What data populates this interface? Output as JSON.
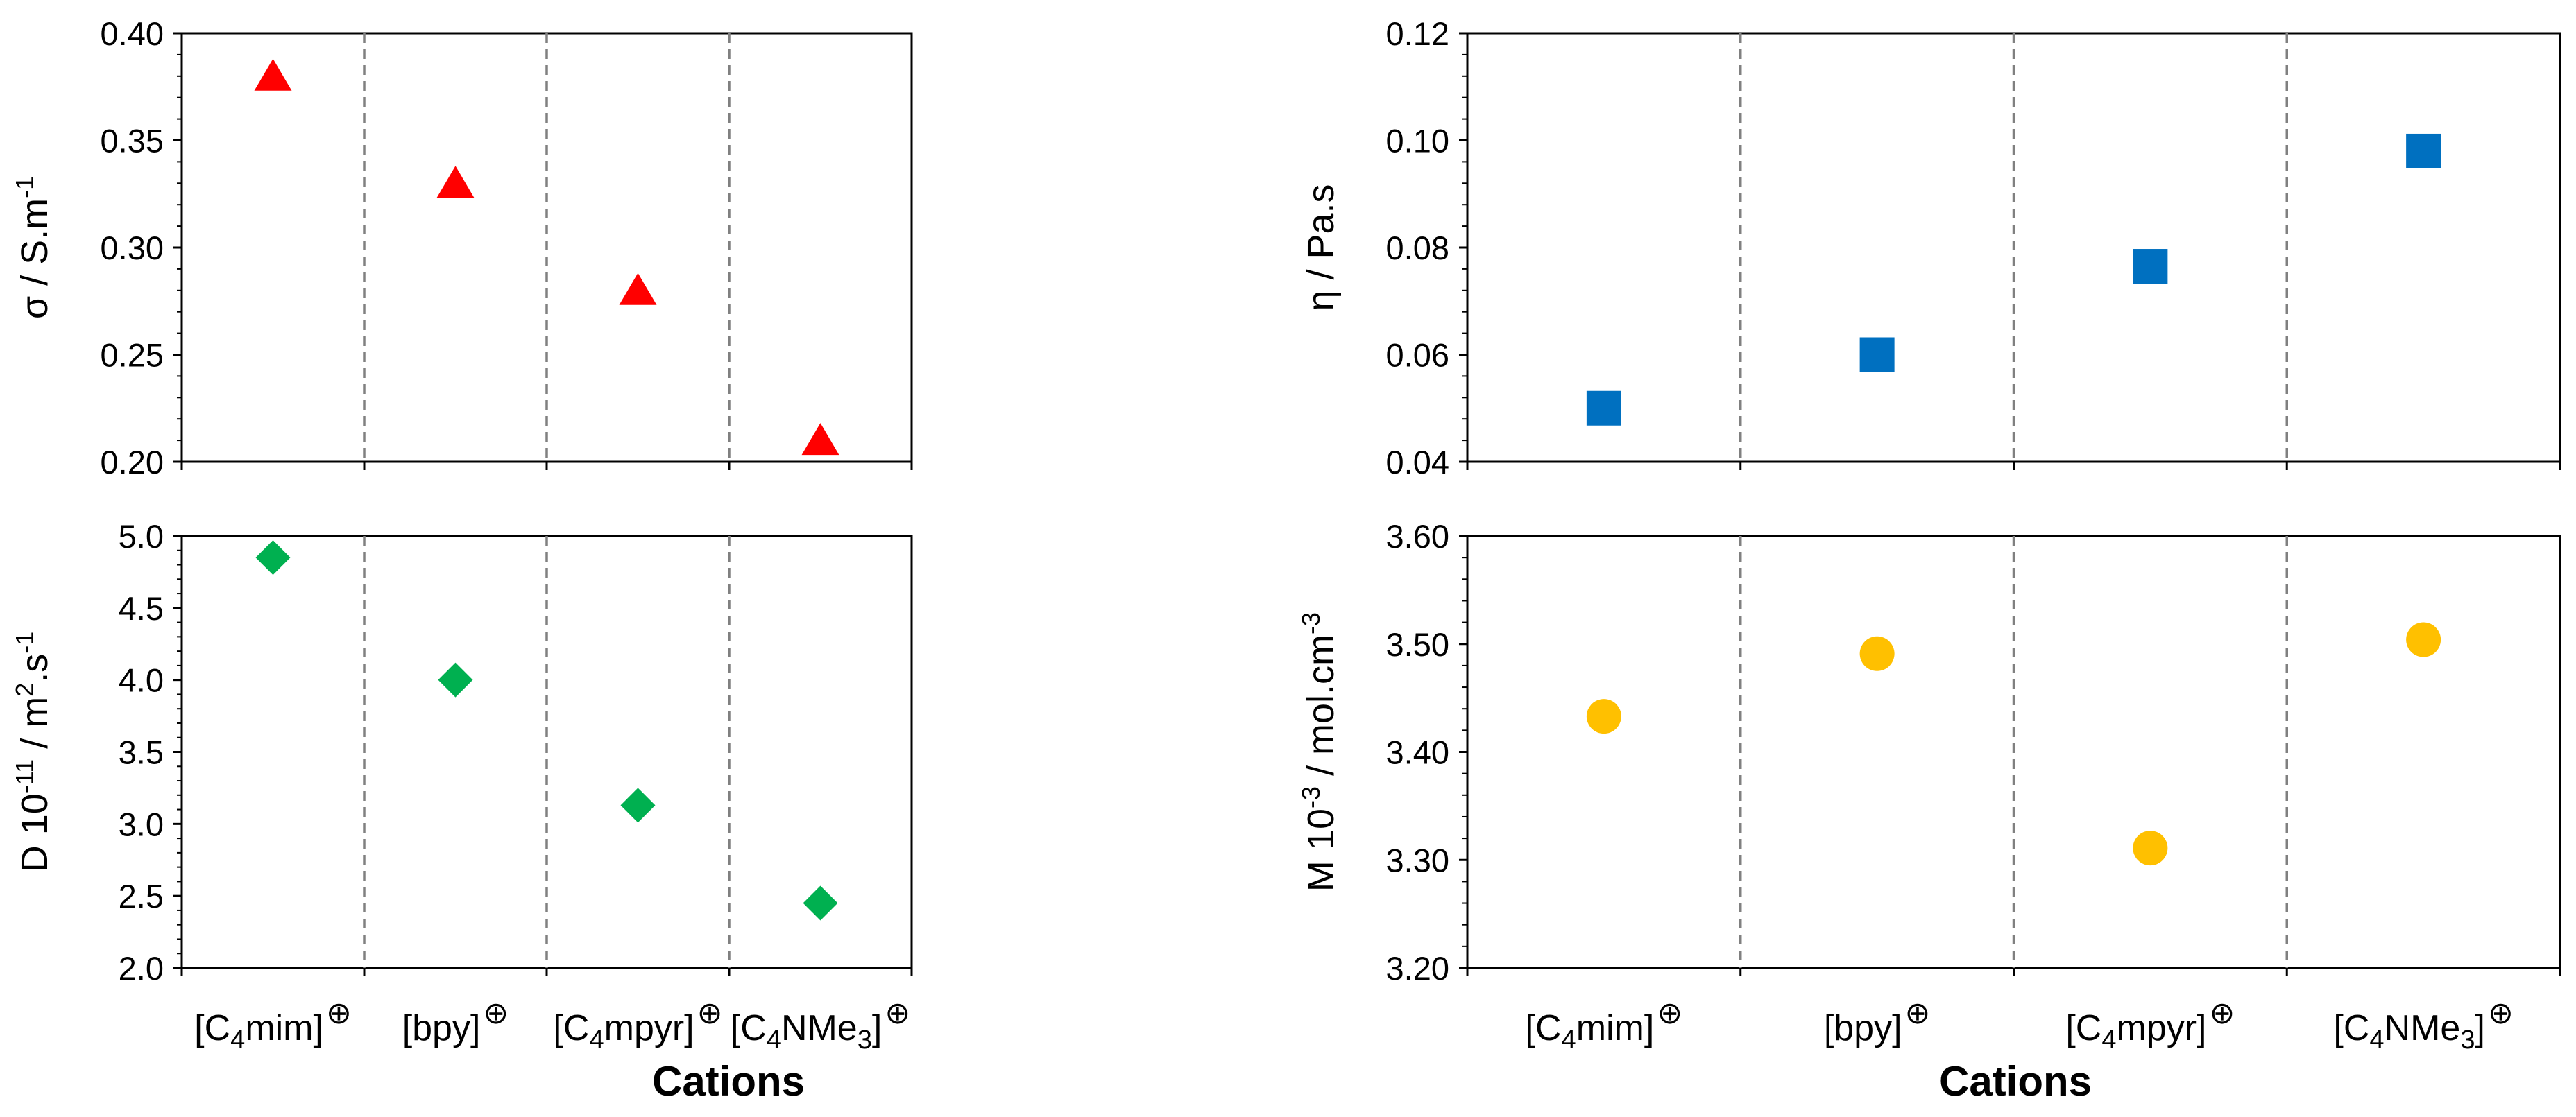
{
  "chart_data": {
    "type": "scatter",
    "categories": [
      "[C4mim]",
      "[bpy]",
      "[C4mpyr]",
      "[C4NMe3]"
    ],
    "category_labels": [
      {
        "pre": "[C",
        "sub": "4",
        "post": "mim]"
      },
      {
        "pre": "[bpy]",
        "sub": "",
        "post": ""
      },
      {
        "pre": "[C",
        "sub": "4",
        "post": "mpyr]"
      },
      {
        "pre": "[C",
        "sub": "4",
        "post": "NMe",
        "sub2": "3",
        "post2": "]"
      }
    ],
    "cation_charge_symbol": "⊕",
    "xlabel": "Cations",
    "panels": [
      {
        "id": "conductivity",
        "ylabel": {
          "text": "σ / S.m",
          "sup": "-1",
          "tail": ""
        },
        "ylim": [
          0.2,
          0.4
        ],
        "yticks": [
          "0.20",
          "0.25",
          "0.30",
          "0.35",
          "0.40"
        ],
        "values": [
          0.38,
          0.33,
          0.28,
          0.21
        ],
        "marker": "triangle",
        "color": "#ff0000"
      },
      {
        "id": "viscosity",
        "ylabel": {
          "text": "η / Pa.s",
          "sup": "",
          "tail": ""
        },
        "ylim": [
          0.04,
          0.12
        ],
        "yticks": [
          "0.04",
          "0.06",
          "0.08",
          "0.10",
          "0.12"
        ],
        "values": [
          0.05,
          0.06,
          0.0765,
          0.098
        ],
        "marker": "square",
        "color": "#0070c0"
      },
      {
        "id": "diffusion",
        "ylabel": {
          "text": "D 10",
          "sup": "-11",
          "tail": " / m",
          "sup2": "2",
          "tail2": ".s",
          "sup3": "-1"
        },
        "ylim": [
          2.0,
          5.0
        ],
        "yticks": [
          "2.0",
          "2.5",
          "3.0",
          "3.5",
          "4.0",
          "4.5",
          "5.0"
        ],
        "values": [
          4.85,
          4.0,
          3.13,
          2.45
        ],
        "marker": "diamond",
        "color": "#00b050"
      },
      {
        "id": "molarity",
        "ylabel": {
          "text": "M 10",
          "sup": "-3",
          "tail": " / mol.cm",
          "sup2": "-3",
          "tail2": "",
          "sup3": ""
        },
        "ylim": [
          3.2,
          3.6
        ],
        "yticks": [
          "3.20",
          "3.30",
          "3.40",
          "3.50",
          "3.60"
        ],
        "values": [
          3.433,
          3.491,
          3.311,
          3.504
        ],
        "marker": "circle",
        "color": "#ffc000"
      }
    ]
  }
}
